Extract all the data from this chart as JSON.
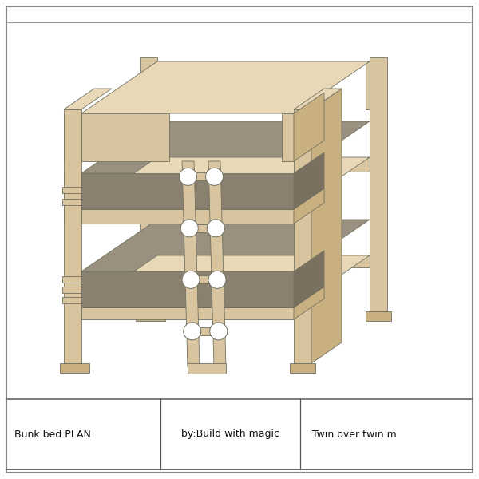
{
  "bg_color": "#ffffff",
  "wood_face": "#D8C5A0",
  "wood_top": "#E8D8B8",
  "wood_side": "#C8B080",
  "wood_edge": "#B09060",
  "mattress_top": "#9A9080",
  "mattress_front": "#8A8070",
  "mattress_side": "#7A7060",
  "shadow": "#C0B090",
  "outline": "#707060",
  "title_row": {
    "col1": "Bunk bed PLAN",
    "col2": "by:Build with magic",
    "col3": "Twin over twin m"
  },
  "figsize": [
    6.0,
    6.0
  ],
  "dpi": 100
}
